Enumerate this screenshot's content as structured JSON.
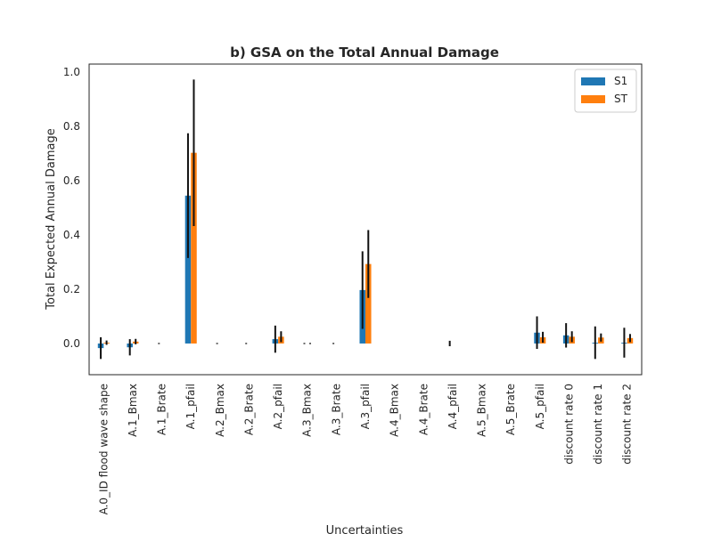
{
  "chart_data": {
    "type": "bar",
    "title": "b) GSA on the Total Annual Damage",
    "xlabel": "Uncertainties",
    "ylabel": "Total Expected Annual Damage",
    "ylim": [
      -0.115,
      1.03
    ],
    "yticks": [
      "0.0",
      "0.2",
      "0.4",
      "0.6",
      "0.8",
      "1.0"
    ],
    "grid": false,
    "legend_position": "top-right",
    "categories": [
      "A.0_ID flood wave shape",
      "A.1_Bmax",
      "A.1_Brate",
      "A.1_pfail",
      "A.2_Bmax",
      "A.2_Brate",
      "A.2_pfail",
      "A.3_Bmax",
      "A.3_Brate",
      "A.3_pfail",
      "A.4_Bmax",
      "A.4_Brate",
      "A.4_pfail",
      "A.5_Bmax",
      "A.5_Brate",
      "A.5_pfail",
      "discount rate 0",
      "discount rate 1",
      "discount rate 2"
    ],
    "series": [
      {
        "name": "S1",
        "color": "#1f77b4",
        "values": [
          -0.017,
          -0.014,
          0.0,
          0.545,
          0.0,
          0.0,
          0.016,
          0.0,
          0.0,
          0.197,
          0.0,
          0.0,
          0.0,
          0.0,
          0.0,
          0.04,
          0.03,
          0.003,
          0.003
        ],
        "err": [
          0.04,
          0.03,
          0.002,
          0.23,
          0.002,
          0.002,
          0.05,
          0.002,
          0.002,
          0.143,
          0.0,
          0.0,
          0.01,
          0.0,
          0.0,
          0.06,
          0.045,
          0.06,
          0.055
        ]
      },
      {
        "name": "ST",
        "color": "#ff7f0e",
        "values": [
          0.003,
          0.007,
          0.0,
          0.703,
          0.0,
          0.0,
          0.025,
          0.0,
          0.0,
          0.293,
          0.0,
          0.0,
          0.0,
          0.0,
          0.0,
          0.023,
          0.025,
          0.022,
          0.02
        ],
        "err": [
          0.008,
          0.01,
          0.0,
          0.27,
          0.0,
          0.0,
          0.02,
          0.002,
          0.0,
          0.125,
          0.0,
          0.0,
          0.0,
          0.0,
          0.0,
          0.02,
          0.02,
          0.015,
          0.015
        ]
      }
    ]
  }
}
